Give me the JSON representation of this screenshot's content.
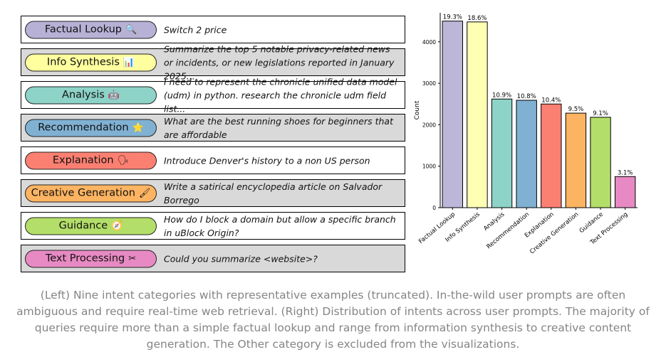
{
  "categories": [
    {
      "label": "Factual Lookup",
      "icon": "🔍",
      "icon_name": "magnifier-icon",
      "color": "#b8b1d6",
      "example": "Switch 2 price",
      "row": "white"
    },
    {
      "label": "Info Synthesis",
      "icon": "📊",
      "icon_name": "bar-chart-icon",
      "color": "#ffff9f",
      "example": "Summarize the top 5 notable privacy-related news or incidents, or new legislations reported in January 2025...",
      "row": "shaded"
    },
    {
      "label": "Analysis",
      "icon": "🤖",
      "icon_name": "robot-icon",
      "color": "#8dd3c7",
      "example": "I need to represent the chronicle unified data model (udm) in python. research the chronicle udm field list...",
      "row": "white"
    },
    {
      "label": "Recommendation",
      "icon": "⭐",
      "icon_name": "star-icon",
      "color": "#80b1d3",
      "example": "What are the best running shoes for beginners that are affordable",
      "row": "shaded"
    },
    {
      "label": "Explanation",
      "icon": "🗣",
      "icon_name": "speaking-head-icon",
      "color": "#fb8072",
      "example": "Introduce Denver's history to a non US person",
      "row": "white"
    },
    {
      "label": "Creative Generation",
      "icon": "🖌",
      "icon_name": "paintbrush-icon",
      "color": "#fdb462",
      "example": "Write a satirical encyclopedia article on Salvador Borrego",
      "row": "shaded"
    },
    {
      "label": "Guidance",
      "icon": "🧭",
      "icon_name": "compass-icon",
      "color": "#b3de69",
      "example": "How do I block a domain but allow a specific branch in uBlock Origin?",
      "row": "white"
    },
    {
      "label": "Text Processing",
      "icon": "✂",
      "icon_name": "scissors-icon",
      "color": "#e78ac3",
      "example": "Could you summarize <website>?",
      "row": "shaded"
    }
  ],
  "chart_data": {
    "type": "bar",
    "categories": [
      "Factual Lookup",
      "Info Synthesis",
      "Analysis",
      "Recommendation",
      "Explanation",
      "Creative Generation",
      "Guidance",
      "Text Processing"
    ],
    "values": [
      4500,
      4480,
      2620,
      2590,
      2500,
      2280,
      2180,
      750
    ],
    "data_labels": [
      "19.3%",
      "18.6%",
      "10.9%",
      "10.8%",
      "10.4%",
      "9.5%",
      "9.1%",
      "3.1%"
    ],
    "colors": [
      "#bcb6d9",
      "#ffffb3",
      "#8dd3c7",
      "#80b1d3",
      "#fb8072",
      "#fdb462",
      "#b3de69",
      "#e78ac3"
    ],
    "ylabel": "Count",
    "yticks": [
      0,
      1000,
      2000,
      3000,
      4000
    ],
    "ylim": [
      0,
      4700
    ],
    "grid": false
  },
  "caption": "(Left) Nine intent categories with representative examples (truncated). In-the-wild user prompts are often ambiguous and require real-time web retrieval. (Right) Distribution of intents across user prompts. The majority of queries require more than a simple factual lookup and range from information synthesis to creative content generation. The Other category is excluded from the visualizations."
}
